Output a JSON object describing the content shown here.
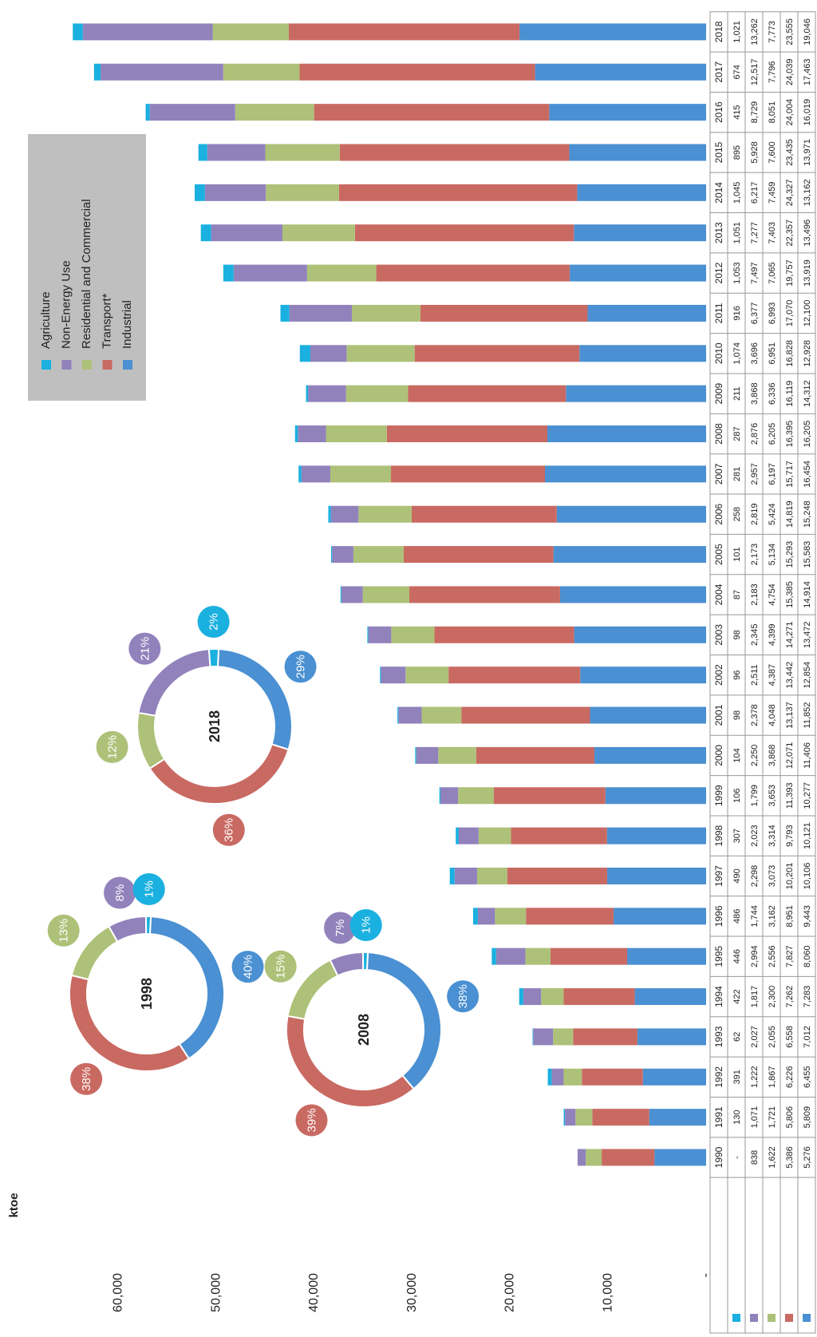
{
  "chart_data": {
    "type": "bar",
    "stacked": true,
    "y_label": "ktoe",
    "categories": [
      "1990",
      "1991",
      "1992",
      "1993",
      "1994",
      "1995",
      "1996",
      "1997",
      "1998",
      "1999",
      "2000",
      "2001",
      "2002",
      "2003",
      "2004",
      "2005",
      "2006",
      "2007",
      "2008",
      "2009",
      "2010",
      "2011",
      "2012",
      "2013",
      "2014",
      "2015",
      "2016",
      "2017",
      "2018"
    ],
    "series": [
      {
        "name": "Agriculture",
        "color": "#1ab0e0",
        "values": [
          0,
          130,
          391,
          62,
          422,
          446,
          486,
          490,
          307,
          106,
          104,
          98,
          96,
          98,
          87,
          101,
          258,
          281,
          287,
          211,
          1074,
          916,
          1053,
          1051,
          1045,
          895,
          415,
          674,
          1021
        ],
        "value_labels": [
          "-",
          "130",
          "391",
          "62",
          "422",
          "446",
          "486",
          "490",
          "307",
          "106",
          "104",
          "98",
          "96",
          "98",
          "87",
          "101",
          "258",
          "281",
          "287",
          "211",
          "1,074",
          "916",
          "1,053",
          "1,051",
          "1,045",
          "895",
          "415",
          "674",
          "1,021"
        ]
      },
      {
        "name": "Non-Energy Use",
        "color": "#9182bc",
        "values": [
          838,
          1071,
          1222,
          2027,
          1817,
          2994,
          1744,
          2298,
          2023,
          1799,
          2250,
          2378,
          2511,
          2345,
          2183,
          2173,
          2819,
          2957,
          2876,
          3868,
          3696,
          6377,
          7497,
          7277,
          6217,
          5928,
          8729,
          12517,
          13262
        ],
        "value_labels": [
          "838",
          "1,071",
          "1,222",
          "2,027",
          "1,817",
          "2,994",
          "1,744",
          "2,298",
          "2,023",
          "1,799",
          "2,250",
          "2,378",
          "2,511",
          "2,345",
          "2,183",
          "2,173",
          "2,819",
          "2,957",
          "2,876",
          "3,868",
          "3,696",
          "6,377",
          "7,497",
          "7,277",
          "6,217",
          "5,928",
          "8,729",
          "12,517",
          "13,262"
        ]
      },
      {
        "name": "Residential and Commercial",
        "color": "#adc178",
        "values": [
          1622,
          1721,
          1867,
          2055,
          2300,
          2556,
          3162,
          3073,
          3314,
          3653,
          3868,
          4048,
          4387,
          4399,
          4754,
          5134,
          5424,
          6197,
          6205,
          6336,
          6951,
          6993,
          7065,
          7403,
          7459,
          7600,
          8051,
          7796,
          7773
        ],
        "value_labels": [
          "1,622",
          "1,721",
          "1,867",
          "2,055",
          "2,300",
          "2,556",
          "3,162",
          "3,073",
          "3,314",
          "3,653",
          "3,868",
          "4,048",
          "4,387",
          "4,399",
          "4,754",
          "5,134",
          "5,424",
          "6,197",
          "6,205",
          "6,336",
          "6,951",
          "6,993",
          "7,065",
          "7,403",
          "7,459",
          "7,600",
          "8,051",
          "7,796",
          "7,773"
        ]
      },
      {
        "name": "Transport*",
        "color": "#c96a62",
        "values": [
          5386,
          5806,
          6226,
          6558,
          7262,
          7827,
          8951,
          10201,
          9793,
          11393,
          12071,
          13137,
          13442,
          14271,
          15385,
          15293,
          14819,
          15717,
          16395,
          16119,
          16828,
          17070,
          19757,
          22357,
          24327,
          23435,
          24004,
          24039,
          23555
        ],
        "value_labels": [
          "5,386",
          "5,806",
          "6,226",
          "6,558",
          "7,262",
          "7,827",
          "8,951",
          "10,201",
          "9,793",
          "11,393",
          "12,071",
          "13,137",
          "13,442",
          "14,271",
          "15,385",
          "15,293",
          "14,819",
          "15,717",
          "16,395",
          "16,119",
          "16,828",
          "17,070",
          "19,757",
          "22,357",
          "24,327",
          "23,435",
          "24,004",
          "24,039",
          "23,555"
        ]
      },
      {
        "name": "Industrial",
        "color": "#4a90d2",
        "values": [
          5276,
          5809,
          6455,
          7012,
          7283,
          8060,
          9443,
          10106,
          10121,
          10277,
          11406,
          11852,
          12854,
          13472,
          14914,
          15583,
          15248,
          16454,
          16205,
          14312,
          12928,
          12100,
          13919,
          13496,
          13162,
          13971,
          16019,
          17463,
          19046
        ],
        "value_labels": [
          "5,276",
          "5,809",
          "6,455",
          "7,012",
          "7,283",
          "8,060",
          "9,443",
          "10,106",
          "10,121",
          "10,277",
          "11,406",
          "11,852",
          "12,854",
          "13,472",
          "14,914",
          "15,583",
          "15,248",
          "16,454",
          "16,205",
          "14,312",
          "12,928",
          "12,100",
          "13,919",
          "13,496",
          "13,162",
          "13,971",
          "16,019",
          "17,463",
          "19,046"
        ]
      }
    ],
    "ylim": [
      0,
      65000
    ],
    "yticks": [
      {
        "value": 0,
        "label": "-"
      },
      {
        "value": 10000,
        "label": "10,000"
      },
      {
        "value": 20000,
        "label": "20,000"
      },
      {
        "value": 30000,
        "label": "30,000"
      },
      {
        "value": 40000,
        "label": "40,000"
      },
      {
        "value": 50000,
        "label": "50,000"
      },
      {
        "value": 60000,
        "label": "60,000"
      }
    ],
    "legend": "top-right",
    "donuts": [
      {
        "label": "1998",
        "values": [
          1,
          8,
          13,
          38,
          40
        ],
        "value_labels": [
          "1%",
          "8%",
          "13%",
          "38%",
          "40%"
        ]
      },
      {
        "label": "2008",
        "values": [
          1,
          7,
          15,
          39,
          38
        ],
        "value_labels": [
          "1%",
          "7%",
          "15%",
          "39%",
          "38%"
        ]
      },
      {
        "label": "2018",
        "values": [
          2,
          21,
          12,
          36,
          29
        ],
        "value_labels": [
          "2%",
          "21%",
          "12%",
          "36%",
          "29%"
        ]
      }
    ]
  }
}
